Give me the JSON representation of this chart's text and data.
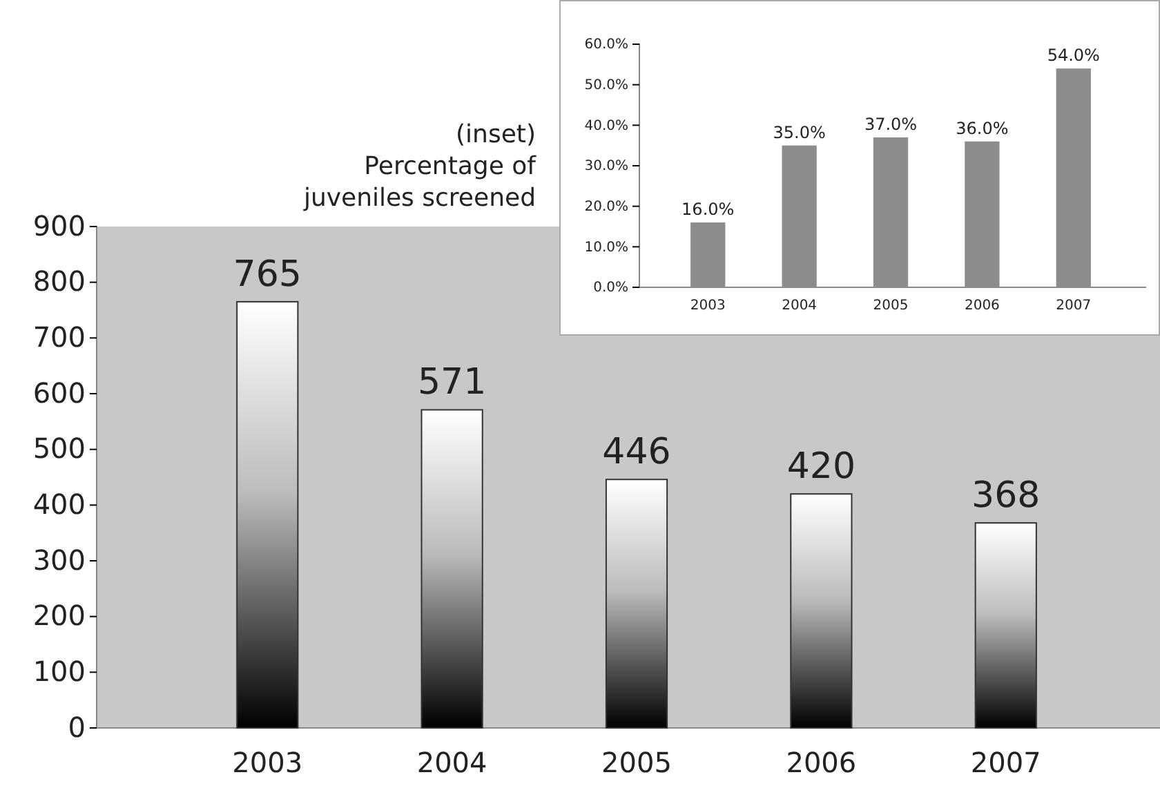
{
  "chart_data": [
    {
      "type": "bar",
      "categories": [
        "2003",
        "2004",
        "2005",
        "2006",
        "2007"
      ],
      "values": [
        765,
        571,
        446,
        420,
        368
      ],
      "ylim": [
        0,
        900
      ],
      "yticks": [
        0,
        100,
        200,
        300,
        400,
        500,
        600,
        700,
        800,
        900
      ],
      "data_labels": true,
      "grid": false
    },
    {
      "type": "bar",
      "title": "(inset) Percentage of juveniles screened",
      "categories": [
        "2003",
        "2004",
        "2005",
        "2006",
        "2007"
      ],
      "values": [
        16,
        35,
        37,
        36,
        54
      ],
      "color": "#8c8c8c",
      "value_labels": [
        "16.0%",
        "35.0%",
        "37.0%",
        "36.0%",
        "54.0%"
      ],
      "ylim": [
        0,
        60
      ],
      "yticks": [
        {
          "value": 0,
          "label": "0.0%"
        },
        {
          "value": 10,
          "label": "10.0%"
        },
        {
          "value": 20,
          "label": "20.0%"
        },
        {
          "value": 30,
          "label": "30.0%"
        },
        {
          "value": 40,
          "label": "40.0%"
        },
        {
          "value": 50,
          "label": "50.0%"
        },
        {
          "value": 60,
          "label": "60.0%"
        }
      ],
      "grid": false
    }
  ]
}
